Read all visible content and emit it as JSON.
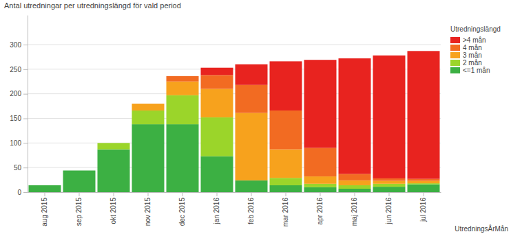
{
  "chart_data": {
    "type": "bar",
    "stacked": true,
    "grid": true,
    "legend": "top-right",
    "title": "Antal utredningar per utredningslängd för vald period",
    "legend_title": "Utredningslängd",
    "x_label": "UtredningsÅrMån",
    "categories": [
      "aug 2015",
      "sep 2015",
      "okt 2015",
      "nov 2015",
      "dec 2015",
      "jan 2016",
      "feb 2016",
      "mar 2016",
      "apr 2016",
      "maj 2016",
      "jun 2016",
      "jul 2016"
    ],
    "series": [
      {
        "name": "<=1 mån",
        "color": "#3cb043",
        "values": [
          14,
          44,
          87,
          138,
          138,
          73,
          24,
          14,
          10,
          7,
          11,
          16
        ]
      },
      {
        "name": "2 mån",
        "color": "#9bd52a",
        "values": [
          0,
          0,
          13,
          28,
          59,
          79,
          0,
          15,
          7,
          7,
          6,
          2
        ]
      },
      {
        "name": "3 mån",
        "color": "#f7a21d",
        "values": [
          0,
          0,
          0,
          14,
          28,
          58,
          137,
          58,
          15,
          10,
          6,
          5
        ]
      },
      {
        "name": "4 mån",
        "color": "#f26b22",
        "values": [
          0,
          0,
          0,
          0,
          11,
          28,
          57,
          79,
          58,
          13,
          5,
          4
        ]
      },
      {
        "name": ">4 mån",
        "color": "#e8231f",
        "values": [
          0,
          0,
          0,
          0,
          0,
          15,
          42,
          100,
          179,
          235,
          250,
          260
        ]
      }
    ],
    "ylim": [
      0,
      360
    ],
    "yticks": [
      0,
      50,
      100,
      150,
      200,
      250,
      300
    ]
  }
}
